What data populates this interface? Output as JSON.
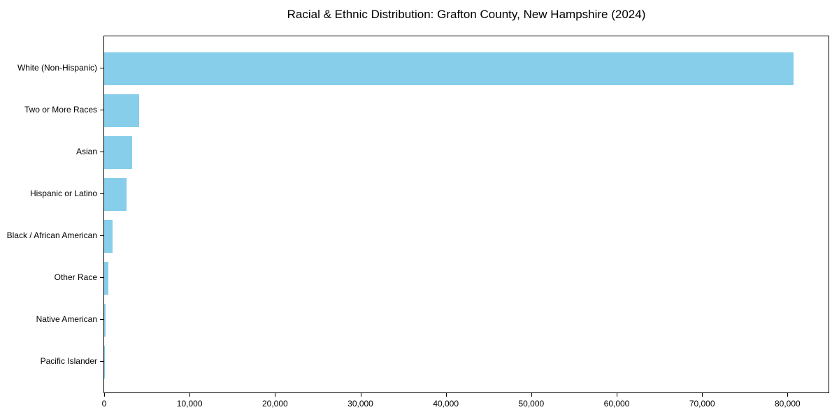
{
  "chart_data": {
    "type": "bar",
    "orientation": "horizontal",
    "title": "Racial & Ethnic Distribution: Grafton County, New Hampshire (2024)",
    "categories": [
      "White (Non-Hispanic)",
      "Two or More Races",
      "Asian",
      "Hispanic or Latino",
      "Black / African American",
      "Other Race",
      "Native American",
      "Pacific Islander"
    ],
    "values": [
      80700,
      4100,
      3250,
      2600,
      1000,
      500,
      150,
      30
    ],
    "xlabel": "",
    "ylabel": "",
    "xlim": [
      0,
      84800
    ],
    "x_ticks": [
      0,
      10000,
      20000,
      30000,
      40000,
      50000,
      60000,
      70000,
      80000
    ],
    "x_tick_labels": [
      "0",
      "10,000",
      "20,000",
      "30,000",
      "40,000",
      "50,000",
      "60,000",
      "70,000",
      "80,000"
    ],
    "bar_color": "#87CEEB",
    "background_color": "#ffffff",
    "text_color": "#000000",
    "grid": false,
    "legend_position": "none"
  }
}
